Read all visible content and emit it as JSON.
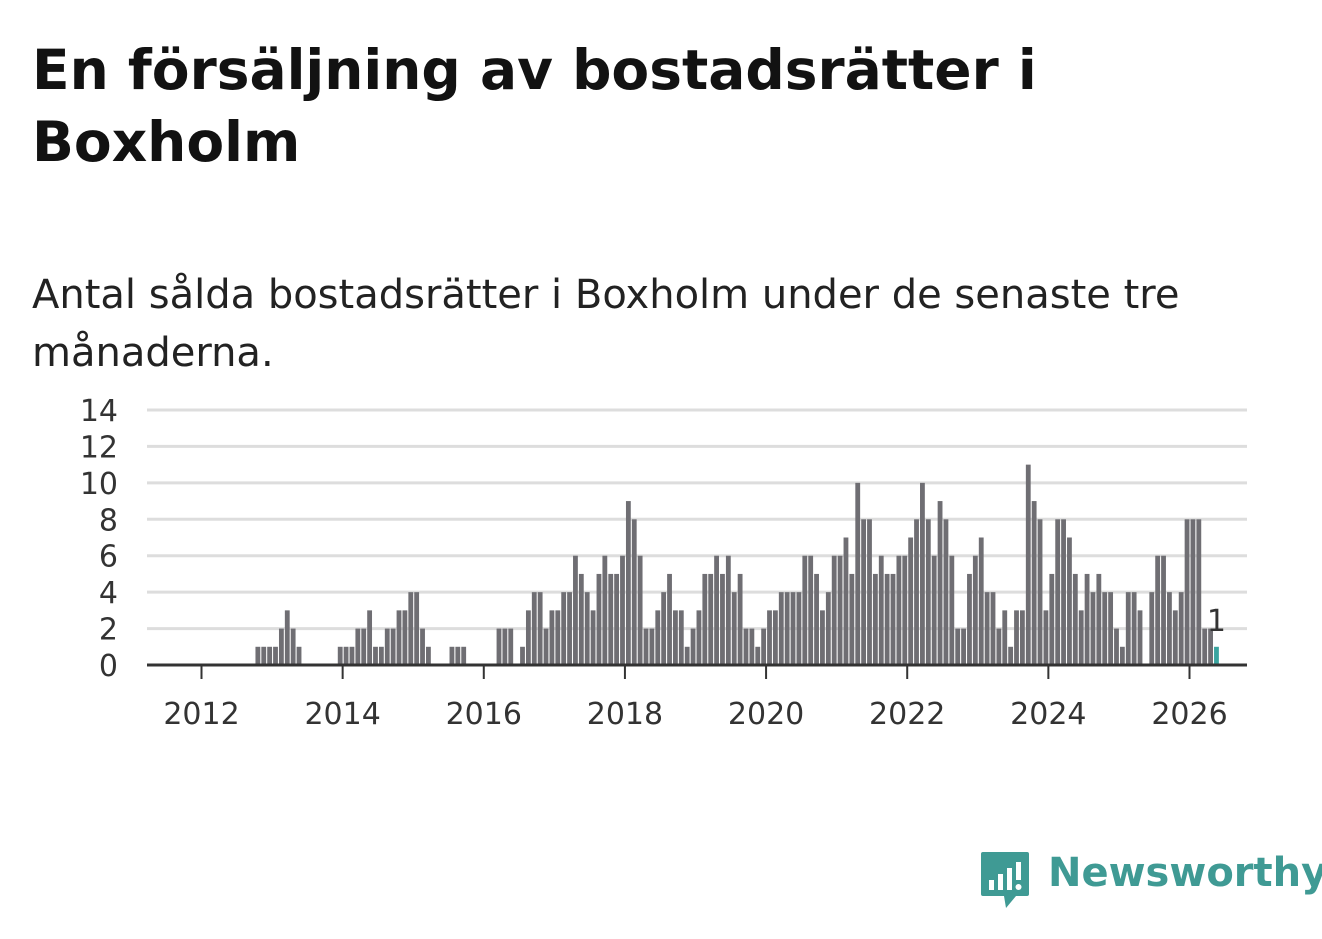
{
  "header": {
    "title": "En försäljning av bostadsrätter i Boxholm",
    "subtitle": "Antal sålda bostadsrätter i Boxholm under de senaste tre månaderna."
  },
  "brand": {
    "name": "Newsworthy",
    "icon": "newsworthy-logo-icon",
    "color": "#3f9a94"
  },
  "chart_data": {
    "type": "bar",
    "title": "En försäljning av bostadsrätter i Boxholm",
    "subtitle": "Antal sålda bostadsrätter i Boxholm under de senaste tre månaderna.",
    "xlabel": "",
    "ylabel": "",
    "ylim": [
      0,
      14
    ],
    "yticks": [
      0,
      2,
      4,
      6,
      8,
      10,
      12,
      14
    ],
    "xticks": [
      "2012",
      "2014",
      "2016",
      "2018",
      "2020",
      "2022",
      "2024",
      "2026"
    ],
    "x_start": "2012-01",
    "x_end": "2026-01",
    "grid": true,
    "bar_color": "#6f6e73",
    "highlight_color": "#3aa5a0",
    "highlight_label": "1",
    "values": [
      0,
      0,
      0,
      0,
      0,
      0,
      0,
      0,
      0,
      0,
      1,
      1,
      1,
      1,
      2,
      3,
      2,
      1,
      0,
      0,
      0,
      0,
      0,
      0,
      1,
      1,
      1,
      2,
      2,
      3,
      1,
      1,
      2,
      2,
      3,
      3,
      4,
      4,
      2,
      1,
      0,
      0,
      0,
      1,
      1,
      1,
      0,
      0,
      0,
      0,
      0,
      2,
      2,
      2,
      0,
      1,
      3,
      4,
      4,
      2,
      3,
      3,
      4,
      4,
      6,
      5,
      4,
      3,
      5,
      6,
      5,
      5,
      6,
      9,
      8,
      6,
      2,
      2,
      3,
      4,
      5,
      3,
      3,
      1,
      2,
      3,
      5,
      5,
      6,
      5,
      6,
      4,
      5,
      2,
      2,
      1,
      2,
      3,
      3,
      4,
      4,
      4,
      4,
      6,
      6,
      5,
      3,
      4,
      6,
      6,
      7,
      5,
      10,
      8,
      8,
      5,
      6,
      5,
      5,
      6,
      6,
      7,
      8,
      10,
      8,
      6,
      9,
      8,
      6,
      2,
      2,
      5,
      6,
      7,
      4,
      4,
      2,
      3,
      1,
      3,
      3,
      11,
      9,
      8,
      3,
      5,
      8,
      8,
      7,
      5,
      3,
      5,
      4,
      5,
      4,
      4,
      2,
      1,
      4,
      4,
      3,
      0,
      4,
      6,
      6,
      4,
      3,
      4,
      8,
      8,
      8,
      2,
      2,
      1
    ]
  }
}
